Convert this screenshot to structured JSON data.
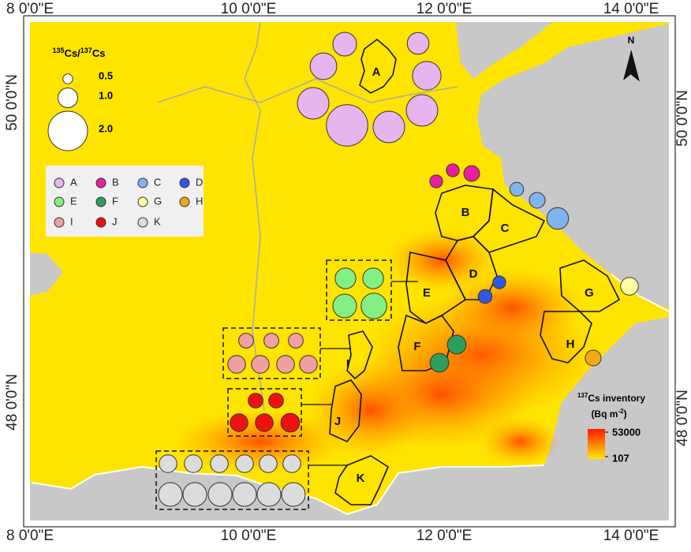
{
  "map": {
    "x_labels": [
      "8 0'0\"E",
      "10 0'0\"E",
      "12 0'0\"E",
      "14 0'0\"E"
    ],
    "y_labels": [
      "50 0'0\"N",
      "48 0'0\"N"
    ],
    "north": "N",
    "size_legend": {
      "title_parts": [
        "135",
        "Cs/",
        "137",
        "Cs"
      ],
      "sizes": [
        {
          "value": 0.5,
          "label": "0.5"
        },
        {
          "value": 1,
          "label": "1.0"
        },
        {
          "value": 2,
          "label": "2.0"
        }
      ]
    },
    "colorbar": {
      "title_parts": [
        "137",
        "Cs inventory"
      ],
      "unit_parts": [
        "(Bq m",
        "-2",
        ")"
      ],
      "max": 53000,
      "min": 107,
      "colors": [
        "#ff1a00",
        "#ffe600"
      ]
    },
    "groups": [
      {
        "name": "A",
        "color": "#e8b4f0",
        "values": [
          1.2,
          1.1,
          1.35,
          1.45,
          1.6,
          2.1,
          1.6,
          1.6
        ]
      },
      {
        "name": "B",
        "color": "#e81ea0",
        "values": [
          0.65,
          0.65,
          0.8
        ]
      },
      {
        "name": "C",
        "color": "#80b4ee",
        "values": [
          0.7,
          0.8,
          1.1
        ]
      },
      {
        "name": "D",
        "color": "#3358e0",
        "values": [
          0.65,
          0.7
        ]
      },
      {
        "name": "E",
        "color": "#84f084",
        "values": [
          1.05,
          1.05,
          1.2,
          1.3
        ]
      },
      {
        "name": "F",
        "color": "#2e9e5c",
        "values": [
          0.95,
          0.95
        ]
      },
      {
        "name": "G",
        "color": "#ffffa0",
        "values": [
          0.9
        ]
      },
      {
        "name": "H",
        "color": "#f2a81d",
        "values": [
          0.8
        ]
      },
      {
        "name": "I",
        "color": "#f0a0a0",
        "values": [
          0.75,
          0.75,
          0.75,
          0.9,
          0.9,
          0.9,
          0.9
        ]
      },
      {
        "name": "J",
        "color": "#ee1111",
        "values": [
          0.75,
          0.75,
          0.9,
          0.9,
          0.95
        ]
      },
      {
        "name": "K",
        "color": "#dcdcdc",
        "values": [
          0.9,
          0.9,
          0.9,
          0.9,
          0.9,
          0.9,
          1.2,
          1.2,
          1.2,
          1.2,
          1.2,
          1.2
        ]
      }
    ]
  }
}
